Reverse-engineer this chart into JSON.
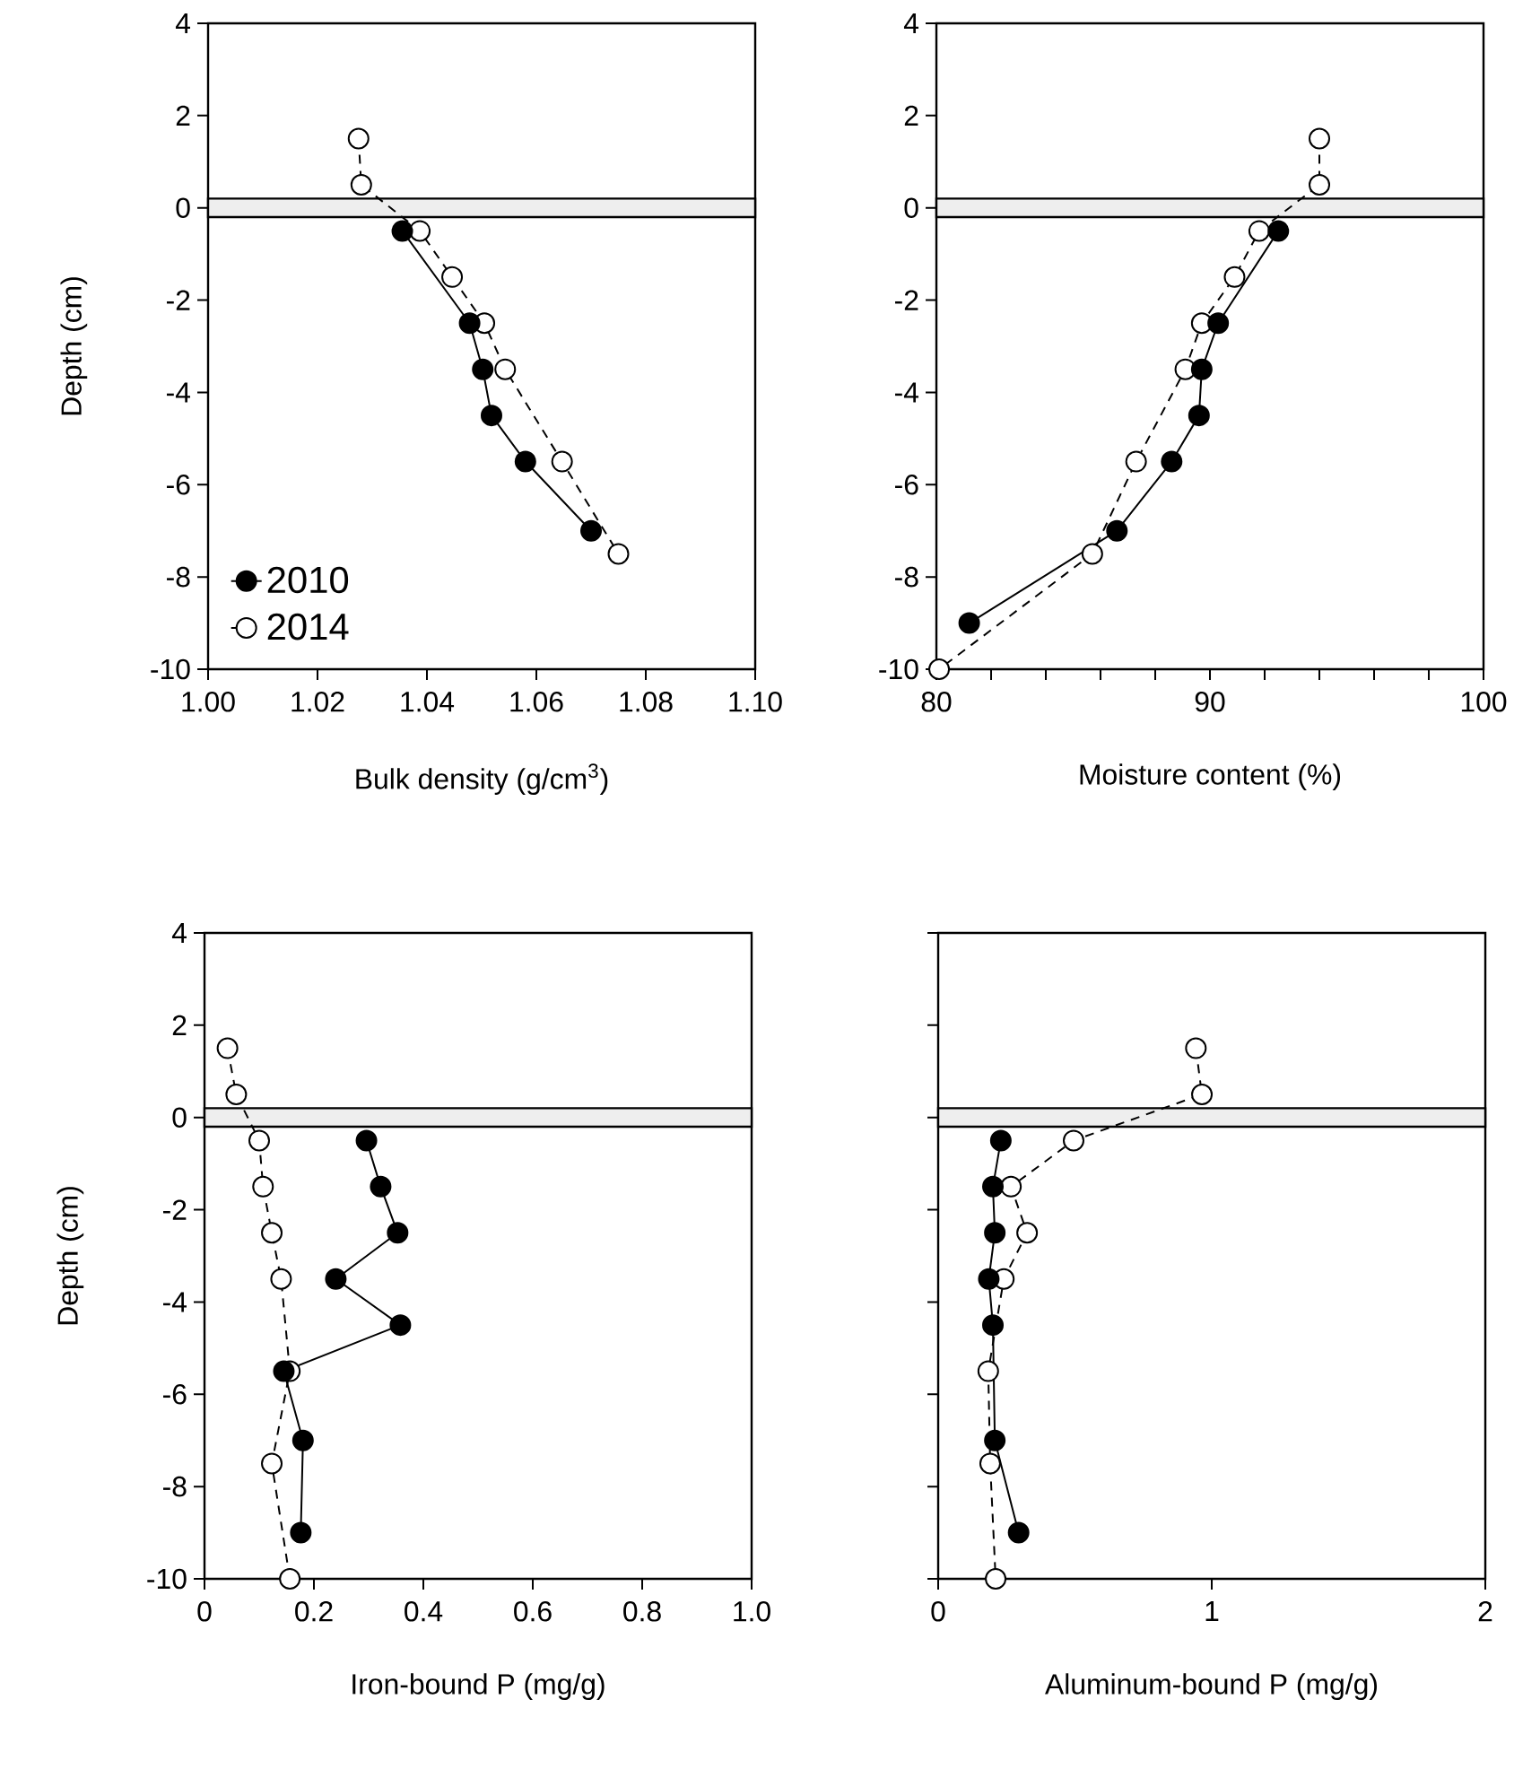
{
  "chart_data": [
    {
      "type": "line",
      "xlabel": "Bulk density (g/cm$^{3}$)",
      "ylabel": "Depth (cm)",
      "xlim": [
        1.0,
        1.1
      ],
      "ylim": [
        -10,
        4
      ],
      "xticks": [
        {
          "value": 1.0,
          "label": "1.00"
        },
        1.02,
        1.04,
        1.06,
        1.08,
        {
          "value": 1.1,
          "label": "1.10"
        }
      ],
      "yticks": [
        4,
        2,
        0,
        -2,
        -4,
        -6,
        -8,
        -10
      ],
      "marker": "circle",
      "legend": "bottom left",
      "bands": [
        {
          "axis": "y",
          "from": -0.2,
          "to": 0.2,
          "color": "#eeeeee"
        }
      ],
      "series": [
        {
          "name": "2010",
          "color": "#000000",
          "line_style": "solid",
          "x": [
            1.0355,
            1.0478,
            1.0502,
            1.0518,
            1.058,
            1.07
          ],
          "values": [
            -0.5,
            -2.5,
            -3.5,
            -4.5,
            -5.5,
            -7
          ]
        },
        {
          "name": "2014",
          "color": "#ffffff",
          "line_style": "dashed",
          "x": [
            1.0275,
            1.028,
            1.0387,
            1.0446,
            1.0505,
            1.0543,
            1.0647,
            1.075
          ],
          "values": [
            1.5,
            0.5,
            -0.5,
            -1.5,
            -2.5,
            -3.5,
            -5.5,
            -7.5
          ]
        }
      ]
    },
    {
      "type": "line",
      "xlabel": "Moisture content (%)",
      "xlim": [
        80,
        100
      ],
      "ylim": [
        -10,
        4
      ],
      "xticks": [
        80,
        {
          "value": 82,
          "label": null
        },
        {
          "value": 84,
          "label": null
        },
        {
          "value": 86,
          "label": null
        },
        {
          "value": 88,
          "label": null
        },
        90,
        {
          "value": 92,
          "label": null
        },
        {
          "value": 94,
          "label": null
        },
        {
          "value": 96,
          "label": null
        },
        {
          "value": 98,
          "label": null
        },
        100
      ],
      "yticks": [
        4,
        2,
        0,
        -2,
        -4,
        -6,
        -8,
        -10
      ],
      "marker": "circle",
      "bands": [
        {
          "axis": "y",
          "from": -0.2,
          "to": 0.2,
          "color": "#eeeeee"
        }
      ],
      "series": [
        {
          "color": "#000000",
          "line_style": "solid",
          "x": [
            92.5,
            90.3,
            89.7,
            89.6,
            88.6,
            86.6,
            81.2
          ],
          "values": [
            -0.5,
            -2.5,
            -3.5,
            -4.5,
            -5.5,
            -7,
            -9
          ]
        },
        {
          "color": "#ffffff",
          "line_style": "dashed",
          "x": [
            94.0,
            94.0,
            91.8,
            90.9,
            89.7,
            89.1,
            87.3,
            85.7,
            80.1
          ],
          "values": [
            1.5,
            0.5,
            -0.5,
            -1.5,
            -2.5,
            -3.5,
            -5.5,
            -7.5,
            -10
          ]
        }
      ]
    },
    {
      "type": "line",
      "xlabel": "Iron-bound P (mg/g)",
      "ylabel": "Depth (cm)",
      "xlim": [
        0,
        1
      ],
      "ylim": [
        -10,
        4
      ],
      "xticks": [
        0,
        0.2,
        0.4,
        0.6,
        0.8,
        {
          "value": 1.0,
          "label": "1.0"
        }
      ],
      "yticks": [
        4,
        2,
        0,
        -2,
        -4,
        -6,
        -8,
        -10
      ],
      "marker": "circle",
      "bands": [
        {
          "axis": "y",
          "from": -0.2,
          "to": 0.2,
          "color": "#eeeeee"
        }
      ],
      "series": [
        {
          "color": "#000000",
          "line_style": "solid",
          "x": [
            0.296,
            0.322,
            0.353,
            0.24,
            0.358,
            0.145,
            0.18,
            0.176
          ],
          "values": [
            -0.5,
            -1.5,
            -2.5,
            -3.5,
            -4.5,
            -5.5,
            -7,
            -9
          ]
        },
        {
          "color": "#ffffff",
          "line_style": "dashed",
          "x": [
            0.042,
            0.058,
            0.1,
            0.107,
            0.123,
            0.14,
            0.156,
            0.123,
            0.156
          ],
          "values": [
            1.5,
            0.5,
            -0.5,
            -1.5,
            -2.5,
            -3.5,
            -5.5,
            -7.5,
            -10
          ]
        }
      ]
    },
    {
      "type": "line",
      "xlabel": "Aluminum-bound P (mg/g)",
      "xlim": [
        0,
        2
      ],
      "ylim": [
        -10,
        4
      ],
      "xticks": [
        0,
        1,
        2
      ],
      "yticks": [
        4,
        2,
        0,
        -2,
        -4,
        -6,
        -8,
        -10
      ],
      "tick_labels": "x",
      "marker": "circle",
      "bands": [
        {
          "axis": "y",
          "from": -0.2,
          "to": 0.2,
          "color": "#eeeeee"
        }
      ],
      "series": [
        {
          "color": "#000000",
          "line_style": "solid",
          "x": [
            0.229,
            0.2,
            0.207,
            0.185,
            0.2,
            0.207,
            0.294
          ],
          "values": [
            -0.5,
            -1.5,
            -2.5,
            -3.5,
            -4.5,
            -7,
            -9
          ]
        },
        {
          "color": "#ffffff",
          "line_style": "dashed",
          "x": [
            0.942,
            0.964,
            0.495,
            0.266,
            0.325,
            0.24,
            0.183,
            0.19,
            0.21
          ],
          "values": [
            1.5,
            0.5,
            -0.5,
            -1.5,
            -2.5,
            -3.5,
            -5.5,
            -7.5,
            -10
          ]
        }
      ]
    }
  ]
}
